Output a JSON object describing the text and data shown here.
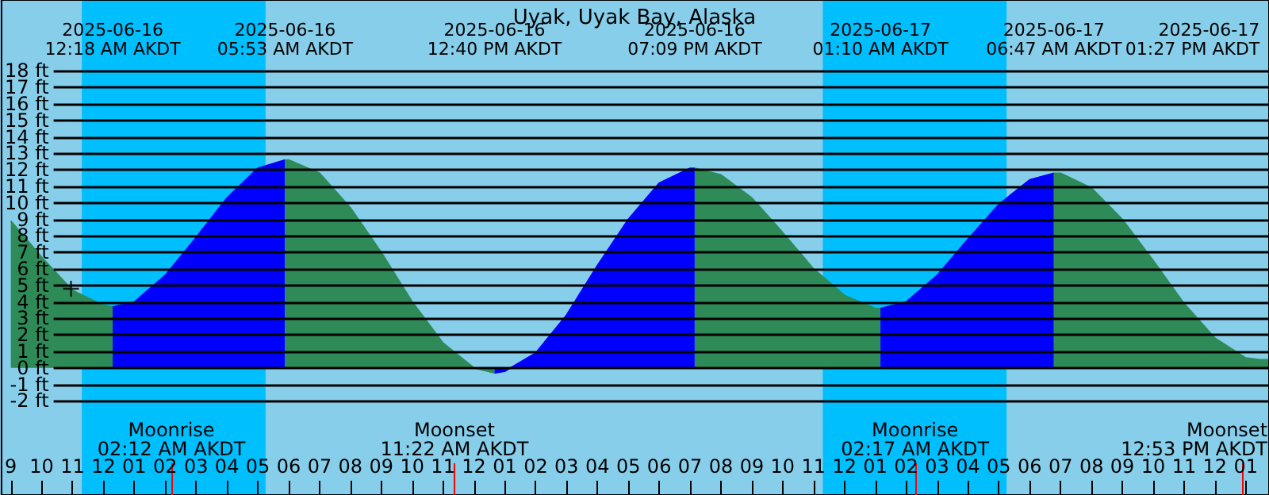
{
  "chart_data": {
    "type": "area",
    "title": "Uyak, Uyak Bay, Alaska",
    "xlim": [
      "2025-06-15T20:42",
      "2025-06-17T13:45"
    ],
    "xticks": [
      {
        "value": "2025-06-15T21:00",
        "label": "9"
      },
      {
        "value": "2025-06-15T22:00",
        "label": "10"
      },
      {
        "value": "2025-06-15T23:00",
        "label": "11"
      },
      {
        "value": "2025-06-16T00:00",
        "label": "12"
      },
      {
        "value": "2025-06-16T01:00",
        "label": "01"
      },
      {
        "value": "2025-06-16T02:00",
        "label": "02"
      },
      {
        "value": "2025-06-16T03:00",
        "label": "03"
      },
      {
        "value": "2025-06-16T04:00",
        "label": "04"
      },
      {
        "value": "2025-06-16T05:00",
        "label": "05"
      },
      {
        "value": "2025-06-16T06:00",
        "label": "06"
      },
      {
        "value": "2025-06-16T07:00",
        "label": "07"
      },
      {
        "value": "2025-06-16T08:00",
        "label": "08"
      },
      {
        "value": "2025-06-16T09:00",
        "label": "09"
      },
      {
        "value": "2025-06-16T10:00",
        "label": "10"
      },
      {
        "value": "2025-06-16T11:00",
        "label": "11"
      },
      {
        "value": "2025-06-16T12:00",
        "label": "12"
      },
      {
        "value": "2025-06-16T13:00",
        "label": "01"
      },
      {
        "value": "2025-06-16T14:00",
        "label": "02"
      },
      {
        "value": "2025-06-16T15:00",
        "label": "03"
      },
      {
        "value": "2025-06-16T16:00",
        "label": "04"
      },
      {
        "value": "2025-06-16T17:00",
        "label": "05"
      },
      {
        "value": "2025-06-16T18:00",
        "label": "06"
      },
      {
        "value": "2025-06-16T19:00",
        "label": "07"
      },
      {
        "value": "2025-06-16T20:00",
        "label": "08"
      },
      {
        "value": "2025-06-16T21:00",
        "label": "09"
      },
      {
        "value": "2025-06-16T22:00",
        "label": "10"
      },
      {
        "value": "2025-06-16T23:00",
        "label": "11"
      },
      {
        "value": "2025-06-17T00:00",
        "label": "12"
      },
      {
        "value": "2025-06-17T01:00",
        "label": "01"
      },
      {
        "value": "2025-06-17T02:00",
        "label": "02"
      },
      {
        "value": "2025-06-17T03:00",
        "label": "03"
      },
      {
        "value": "2025-06-17T04:00",
        "label": "04"
      },
      {
        "value": "2025-06-17T05:00",
        "label": "05"
      },
      {
        "value": "2025-06-17T06:00",
        "label": "06"
      },
      {
        "value": "2025-06-17T07:00",
        "label": "07"
      },
      {
        "value": "2025-06-17T08:00",
        "label": "08"
      },
      {
        "value": "2025-06-17T09:00",
        "label": "09"
      },
      {
        "value": "2025-06-17T10:00",
        "label": "10"
      },
      {
        "value": "2025-06-17T11:00",
        "label": "11"
      },
      {
        "value": "2025-06-17T12:00",
        "label": "12"
      },
      {
        "value": "2025-06-17T13:00",
        "label": "01"
      }
    ],
    "x2lim": [
      "2025-06-15T20:42",
      "2025-06-17T13:45"
    ],
    "x2ticks": [
      {
        "value": "2025-06-16T00:18",
        "label": "2025-06-16\n12:18 AM AKDT"
      },
      {
        "value": "2025-06-16T05:53",
        "label": "2025-06-16\n05:53 AM AKDT"
      },
      {
        "value": "2025-06-16T12:40",
        "label": "2025-06-16\n12:40 PM AKDT"
      },
      {
        "value": "2025-06-16T19:09",
        "label": "2025-06-16\n07:09 PM AKDT"
      },
      {
        "value": "2025-06-17T01:10",
        "label": "2025-06-17\n01:10 AM AKDT"
      },
      {
        "value": "2025-06-17T06:47",
        "label": "2025-06-17\n06:47 AM AKDT"
      },
      {
        "value": "2025-06-17T13:27",
        "label": "2025-06-17\n01:27 PM AKDT"
      }
    ],
    "ylim": [
      -7.7,
      22.3
    ],
    "yticks": [
      {
        "value": -2,
        "label": "-2 ft"
      },
      {
        "value": -1,
        "label": "-1 ft"
      },
      {
        "value": 0,
        "label": "0 ft"
      },
      {
        "value": 1,
        "label": "1 ft"
      },
      {
        "value": 2,
        "label": "2 ft"
      },
      {
        "value": 3,
        "label": "3 ft"
      },
      {
        "value": 4,
        "label": "4 ft"
      },
      {
        "value": 5,
        "label": "5 ft"
      },
      {
        "value": 6,
        "label": "6 ft"
      },
      {
        "value": 7,
        "label": "7 ft"
      },
      {
        "value": 8,
        "label": "8 ft"
      },
      {
        "value": 9,
        "label": "9 ft"
      },
      {
        "value": 10,
        "label": "10 ft"
      },
      {
        "value": 11,
        "label": "11 ft"
      },
      {
        "value": 12,
        "label": "12 ft"
      },
      {
        "value": 13,
        "label": "13 ft"
      },
      {
        "value": 14,
        "label": "14 ft"
      },
      {
        "value": 15,
        "label": "15 ft"
      },
      {
        "value": 16,
        "label": "16 ft"
      },
      {
        "value": 17,
        "label": "17 ft"
      },
      {
        "value": 18,
        "label": "18 ft"
      }
    ],
    "grid": "y",
    "marker": "none",
    "series": [
      {
        "color": "#2e8b57",
        "x": [
          "2025-06-15T21:00",
          "2025-06-15T22:00",
          "2025-06-15T23:00",
          "2025-06-16T00:00",
          "2025-06-16T00:18"
        ],
        "values": [
          8.9,
          6.7,
          4.7,
          3.8,
          3.7
        ]
      },
      {
        "color": "#0000ff",
        "x": [
          "2025-06-16T00:18",
          "2025-06-16T01:00",
          "2025-06-16T02:00",
          "2025-06-16T03:00",
          "2025-06-16T04:00",
          "2025-06-16T05:00",
          "2025-06-16T05:53"
        ],
        "values": [
          3.7,
          4,
          5.6,
          7.9,
          10.3,
          12.1,
          12.6
        ]
      },
      {
        "color": "#2e8b57",
        "x": [
          "2025-06-16T05:53",
          "2025-06-16T06:00",
          "2025-06-16T07:00",
          "2025-06-16T08:00",
          "2025-06-16T09:00",
          "2025-06-16T10:00",
          "2025-06-16T11:00",
          "2025-06-16T12:00",
          "2025-06-16T12:40"
        ],
        "values": [
          12.6,
          12.6,
          11.8,
          9.7,
          7,
          4,
          1.5,
          0,
          -0.3
        ]
      },
      {
        "color": "#0000ff",
        "x": [
          "2025-06-16T12:40",
          "2025-06-16T13:00",
          "2025-06-16T14:00",
          "2025-06-16T15:00",
          "2025-06-16T16:00",
          "2025-06-16T17:00",
          "2025-06-16T18:00",
          "2025-06-16T19:00",
          "2025-06-16T19:09"
        ],
        "values": [
          -0.3,
          -0.2,
          0.9,
          3.2,
          6.2,
          9,
          11.2,
          12.1,
          12.1
        ]
      },
      {
        "color": "#2e8b57",
        "x": [
          "2025-06-16T19:09",
          "2025-06-16T20:00",
          "2025-06-16T21:00",
          "2025-06-16T22:00",
          "2025-06-16T23:00",
          "2025-06-17T00:00",
          "2025-06-17T01:00",
          "2025-06-17T01:10"
        ],
        "values": [
          12.1,
          11.7,
          10.3,
          8.2,
          6,
          4.4,
          3.6,
          3.6
        ]
      },
      {
        "color": "#0000ff",
        "x": [
          "2025-06-17T01:10",
          "2025-06-17T02:00",
          "2025-06-17T03:00",
          "2025-06-17T04:00",
          "2025-06-17T05:00",
          "2025-06-17T06:00",
          "2025-06-17T06:47"
        ],
        "values": [
          3.6,
          4,
          5.6,
          7.8,
          9.9,
          11.4,
          11.8
        ]
      },
      {
        "color": "#2e8b57",
        "x": [
          "2025-06-17T06:47",
          "2025-06-17T07:00",
          "2025-06-17T08:00",
          "2025-06-17T09:00",
          "2025-06-17T10:00",
          "2025-06-17T11:00",
          "2025-06-17T12:00",
          "2025-06-17T13:00",
          "2025-06-17T13:27",
          "2025-06-17T13:45"
        ],
        "values": [
          11.8,
          11.8,
          10.9,
          9,
          6.5,
          3.9,
          1.8,
          0.6,
          0.5,
          0.5
        ]
      },
      {
        "type": "scatter",
        "marker": "cross",
        "color": "#000000",
        "x": [
          "2025-06-15T22:57"
        ],
        "values": [
          4.8
        ]
      }
    ],
    "bands": [
      {
        "axis": "x",
        "from": "2025-06-15T23:18",
        "to": "2025-06-16T05:15",
        "color": "#00bfff"
      },
      {
        "axis": "x",
        "from": "2025-06-16T23:18",
        "to": "2025-06-17T05:15",
        "color": "#00bfff"
      }
    ],
    "ref_lines": [
      {
        "axis": "x",
        "value": "2025-06-16T02:12",
        "label": "Moonrise\n02:12 AM AKDT",
        "color": "#ff0000"
      },
      {
        "axis": "x",
        "value": "2025-06-16T11:22",
        "label": "Moonset\n11:22 AM AKDT",
        "color": "#ff0000"
      },
      {
        "axis": "x",
        "value": "2025-06-17T02:17",
        "label": "Moonrise\n02:17 AM AKDT",
        "color": "#ff0000"
      },
      {
        "axis": "x",
        "value": "2025-06-17T12:53",
        "label": "Moonset\n12:53 PM AKDT",
        "color": "#ff0000"
      }
    ]
  }
}
